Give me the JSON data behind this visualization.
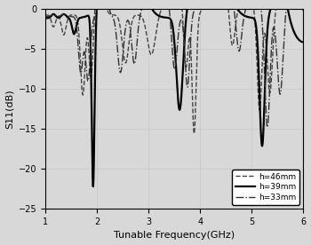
{
  "title": "",
  "xlabel": "Tunable Frequency(GHz)",
  "ylabel": "S11(dB)",
  "xlim": [
    1,
    6
  ],
  "ylim": [
    -25,
    0
  ],
  "xticks": [
    1,
    2,
    3,
    4,
    5,
    6
  ],
  "yticks": [
    0,
    -5,
    -10,
    -15,
    -20,
    -25
  ],
  "grid_color": "#c8c8c8",
  "background_color": "#d8d8d8",
  "legend": [
    {
      "label": "h=46mm",
      "linestyle": "--",
      "color": "#444444",
      "linewidth": 1.0
    },
    {
      "label": "h=39mm",
      "linestyle": "-",
      "color": "#000000",
      "linewidth": 1.6
    },
    {
      "label": "h=33mm",
      "linestyle": "-.",
      "color": "#333333",
      "linewidth": 1.0
    }
  ]
}
